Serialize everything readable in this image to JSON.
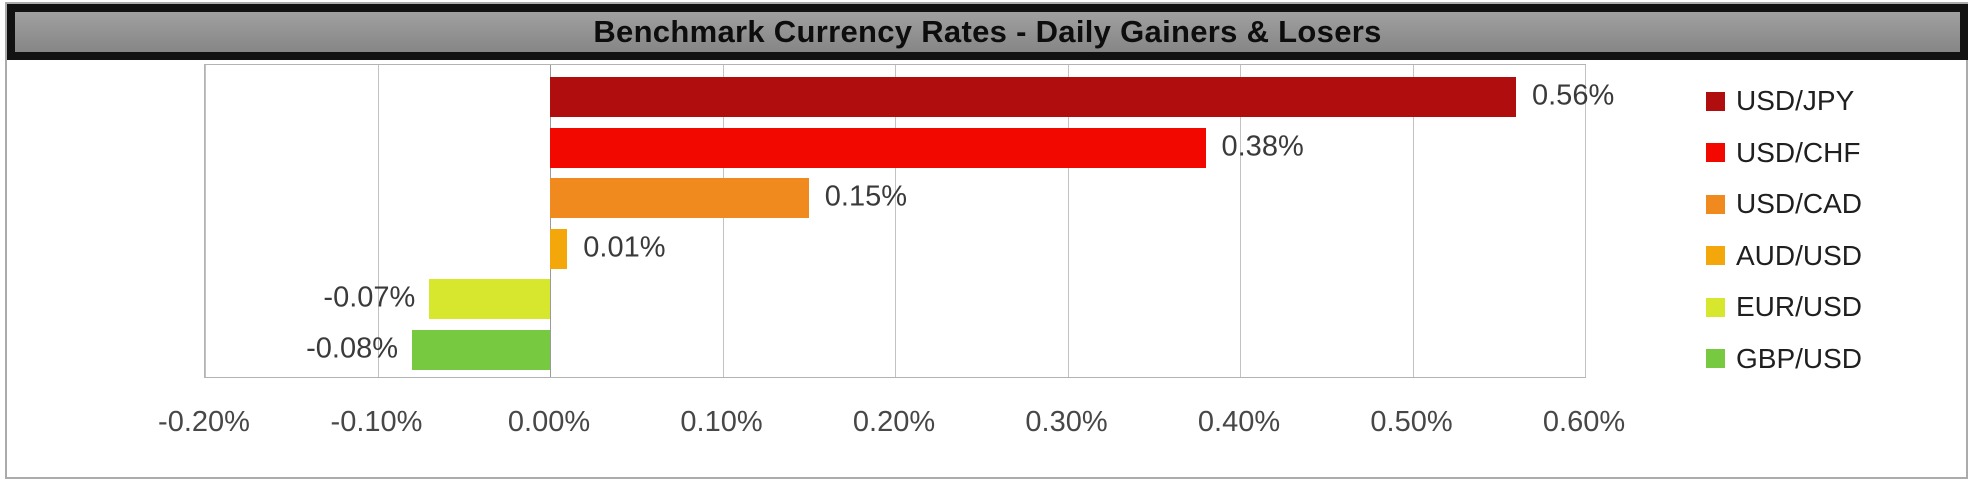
{
  "title": "Benchmark Currency Rates - Daily Gainers & Losers",
  "chart_data": {
    "type": "bar",
    "orientation": "horizontal",
    "title": "Benchmark Currency Rates - Daily Gainers & Losers",
    "categories": [
      "USD/JPY",
      "USD/CHF",
      "USD/CAD",
      "AUD/USD",
      "EUR/USD",
      "GBP/USD"
    ],
    "values": [
      0.56,
      0.38,
      0.15,
      0.01,
      -0.07,
      -0.08
    ],
    "data_labels": [
      "0.56%",
      "0.38%",
      "0.15%",
      "0.01%",
      "-0.07%",
      "-0.08%"
    ],
    "bar_colors": [
      "#b00d0e",
      "#f30800",
      "#f08a1e",
      "#f3a70b",
      "#d6e72e",
      "#77c93f"
    ],
    "xlim": [
      -0.2,
      0.6
    ],
    "x_ticks": [
      "-0.20%",
      "-0.10%",
      "0.00%",
      "0.10%",
      "0.20%",
      "0.30%",
      "0.40%",
      "0.50%",
      "0.60%"
    ],
    "x_tick_values": [
      -0.2,
      -0.1,
      0.0,
      0.1,
      0.2,
      0.3,
      0.4,
      0.5,
      0.6
    ],
    "grid": true,
    "legend_position": "right",
    "legend_entries": [
      "USD/JPY",
      "USD/CHF",
      "USD/CAD",
      "AUD/USD",
      "EUR/USD",
      "GBP/USD"
    ]
  },
  "colors": {
    "title_background": "#949494",
    "title_border": "#121212",
    "frame_border": "#ababab",
    "gridline": "#c2c2c2",
    "axis_text": "#474747",
    "label_text": "#3a3a3a",
    "legend_text": "#1f1f1f"
  }
}
